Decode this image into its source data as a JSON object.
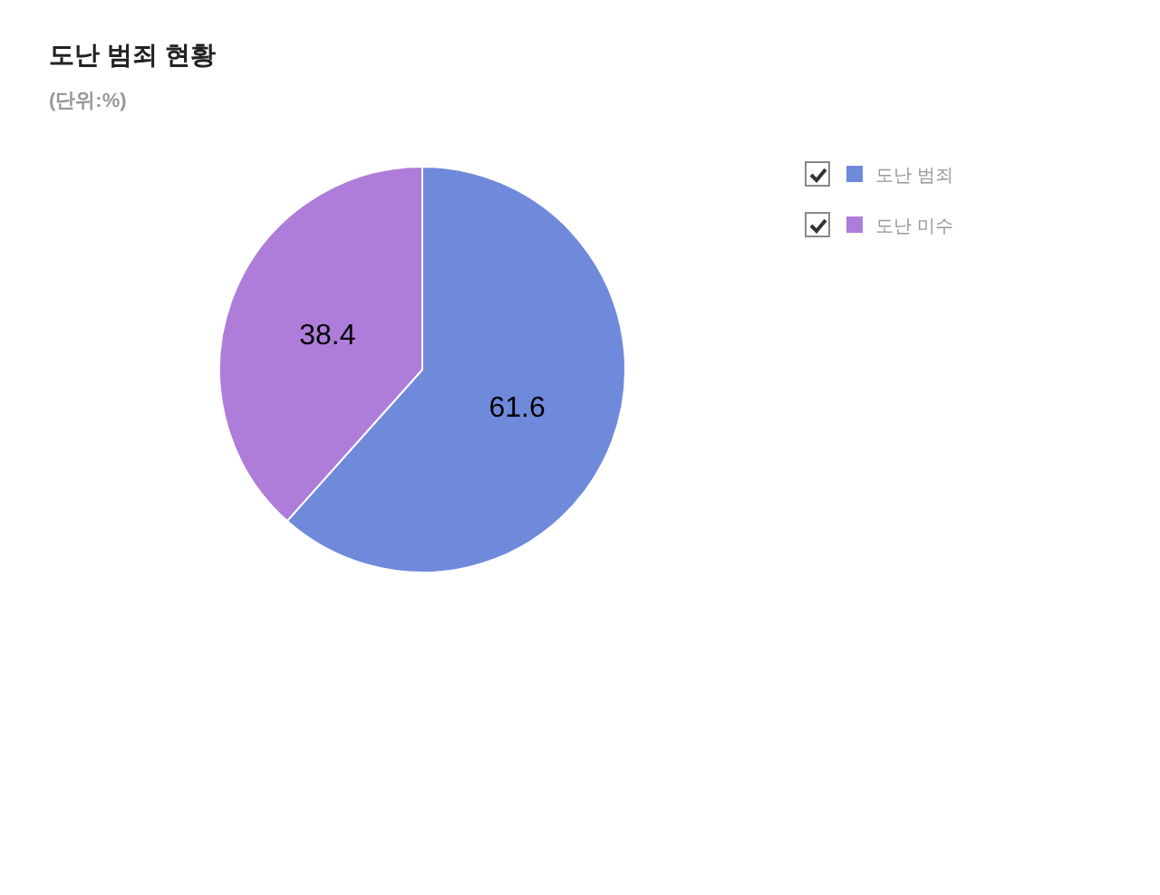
{
  "chart_data": {
    "type": "pie",
    "title": "도난 범죄 현황",
    "subtitle": "(단위:%)",
    "categories": [
      "도난 범죄",
      "도난 미수"
    ],
    "values": [
      61.6,
      38.4
    ],
    "colors": [
      "#6f89db",
      "#ae7dd9"
    ],
    "data_labels": true,
    "legend": "top right"
  }
}
